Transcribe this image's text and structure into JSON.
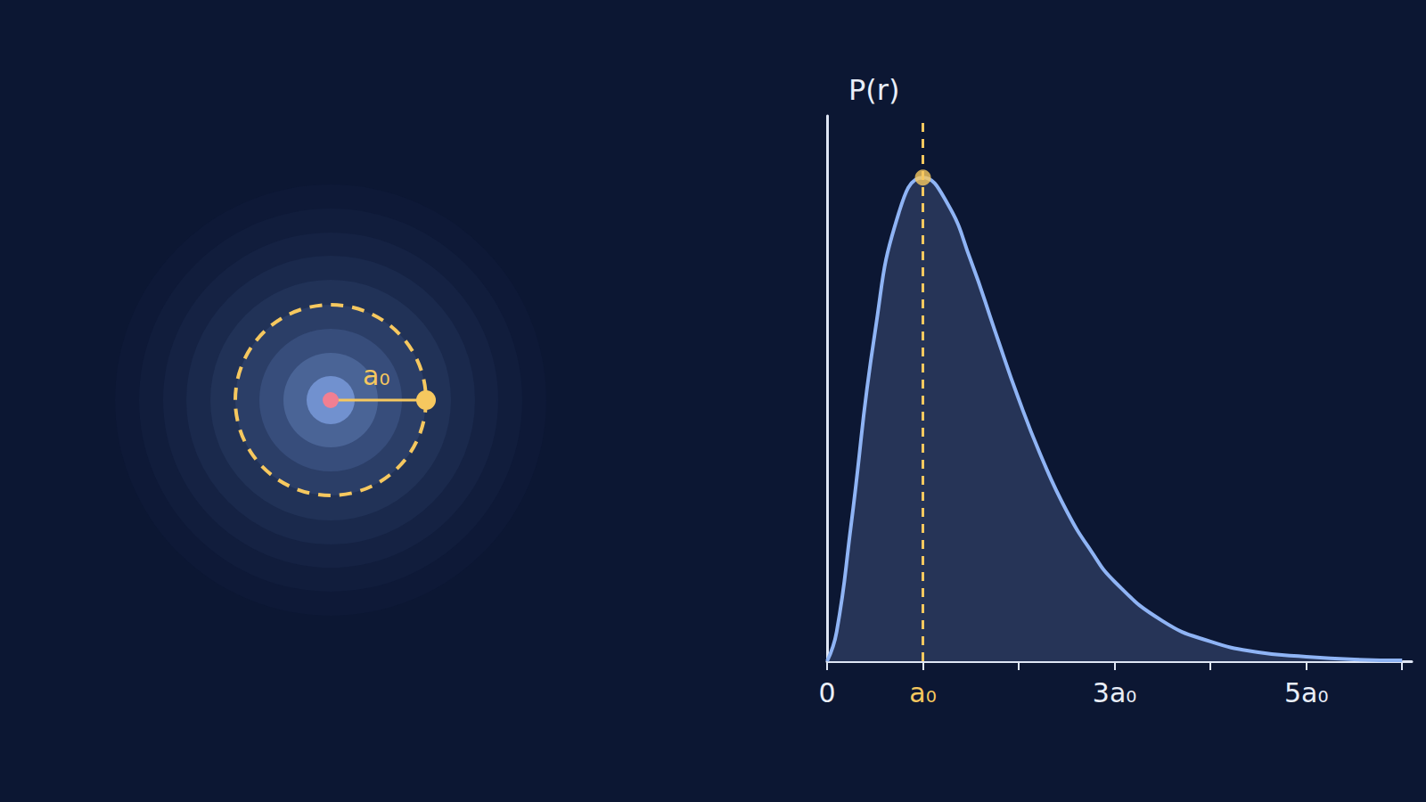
{
  "chart_data": {
    "type": "line",
    "ylabel": "P(r)",
    "x": [
      0,
      0.1,
      0.25,
      0.5,
      0.75,
      1,
      1.25,
      1.5,
      1.75,
      2,
      2.25,
      2.5,
      2.75,
      3,
      3.5,
      4,
      4.5,
      5,
      5.5,
      6
    ],
    "values": [
      0,
      0.033,
      0.152,
      0.368,
      0.502,
      0.541,
      0.513,
      0.448,
      0.37,
      0.293,
      0.225,
      0.168,
      0.124,
      0.089,
      0.045,
      0.022,
      0.01,
      0.005,
      0.002,
      0.001
    ],
    "color": "#8fb4f5",
    "xlim": [
      0,
      6.1
    ],
    "xticks": [
      0,
      {
        "value": 1,
        "label": "a₀"
      },
      {
        "value": 2,
        "label": null
      },
      {
        "value": 3,
        "label": "3a₀"
      },
      {
        "value": 4,
        "label": null
      },
      {
        "value": 5,
        "label": "5a₀"
      },
      {
        "value": 6,
        "label": null
      }
    ],
    "ylim": [
      0,
      0.61
    ],
    "grid": false,
    "tick_labels": "x",
    "peak": {
      "x": 1,
      "y": 0.541
    }
  },
  "diagram": {
    "radius_label": "a₀"
  }
}
